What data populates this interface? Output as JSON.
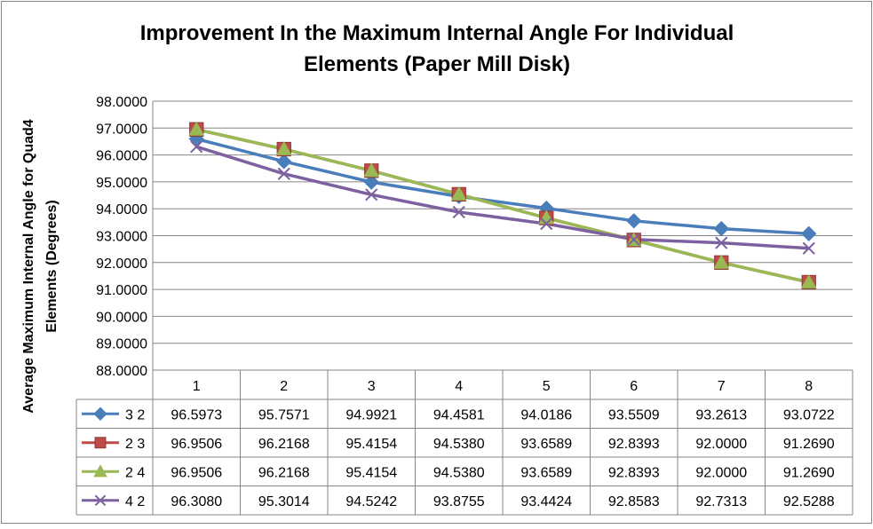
{
  "chart_data": {
    "type": "line",
    "title": "Improvement In the Maximum Internal Angle For Individual Elements (Paper Mill Disk)",
    "title_lines": [
      "Improvement In the Maximum Internal Angle For Individual",
      "Elements (Paper Mill Disk)"
    ],
    "xlabel": "",
    "ylabel": "Average Maximum Internal Angle for Quad4 Elements (Degrees)",
    "ylabel_lines": [
      "Average Maximum Internal Angle for Quad4",
      "Elements (Degrees)"
    ],
    "ylim": [
      88,
      98
    ],
    "y_ticks": [
      "88.0000",
      "89.0000",
      "90.0000",
      "91.0000",
      "92.0000",
      "93.0000",
      "94.0000",
      "95.0000",
      "96.0000",
      "97.0000",
      "98.0000"
    ],
    "categories": [
      "1",
      "2",
      "3",
      "4",
      "5",
      "6",
      "7",
      "8"
    ],
    "grid": true,
    "legend": "data-table",
    "series": [
      {
        "name": "3 2",
        "color": "#4a7ebb",
        "marker": "diamond",
        "values": [
          96.5973,
          95.7571,
          94.9921,
          94.4581,
          94.0186,
          93.5509,
          93.2613,
          93.0722
        ],
        "labels": [
          "96.5973",
          "95.7571",
          "94.9921",
          "94.4581",
          "94.0186",
          "93.5509",
          "93.2613",
          "93.0722"
        ]
      },
      {
        "name": "2 3",
        "color": "#be4b48",
        "marker": "square",
        "values": [
          96.9506,
          96.2168,
          95.4154,
          94.538,
          93.6589,
          92.8393,
          92.0,
          91.269
        ],
        "labels": [
          "96.9506",
          "96.2168",
          "95.4154",
          "94.5380",
          "93.6589",
          "92.8393",
          "92.0000",
          "91.2690"
        ]
      },
      {
        "name": "2 4",
        "color": "#98b954",
        "marker": "triangle",
        "values": [
          96.9506,
          96.2168,
          95.4154,
          94.538,
          93.6589,
          92.8393,
          92.0,
          91.269
        ],
        "labels": [
          "96.9506",
          "96.2168",
          "95.4154",
          "94.5380",
          "93.6589",
          "92.8393",
          "92.0000",
          "91.2690"
        ]
      },
      {
        "name": "4 2",
        "color": "#7d60a0",
        "marker": "x",
        "values": [
          96.308,
          95.3014,
          94.5242,
          93.8755,
          93.4424,
          92.8583,
          92.7313,
          92.5288
        ],
        "labels": [
          "96.3080",
          "95.3014",
          "94.5242",
          "93.8755",
          "93.4424",
          "92.8583",
          "92.7313",
          "92.5288"
        ]
      }
    ]
  }
}
